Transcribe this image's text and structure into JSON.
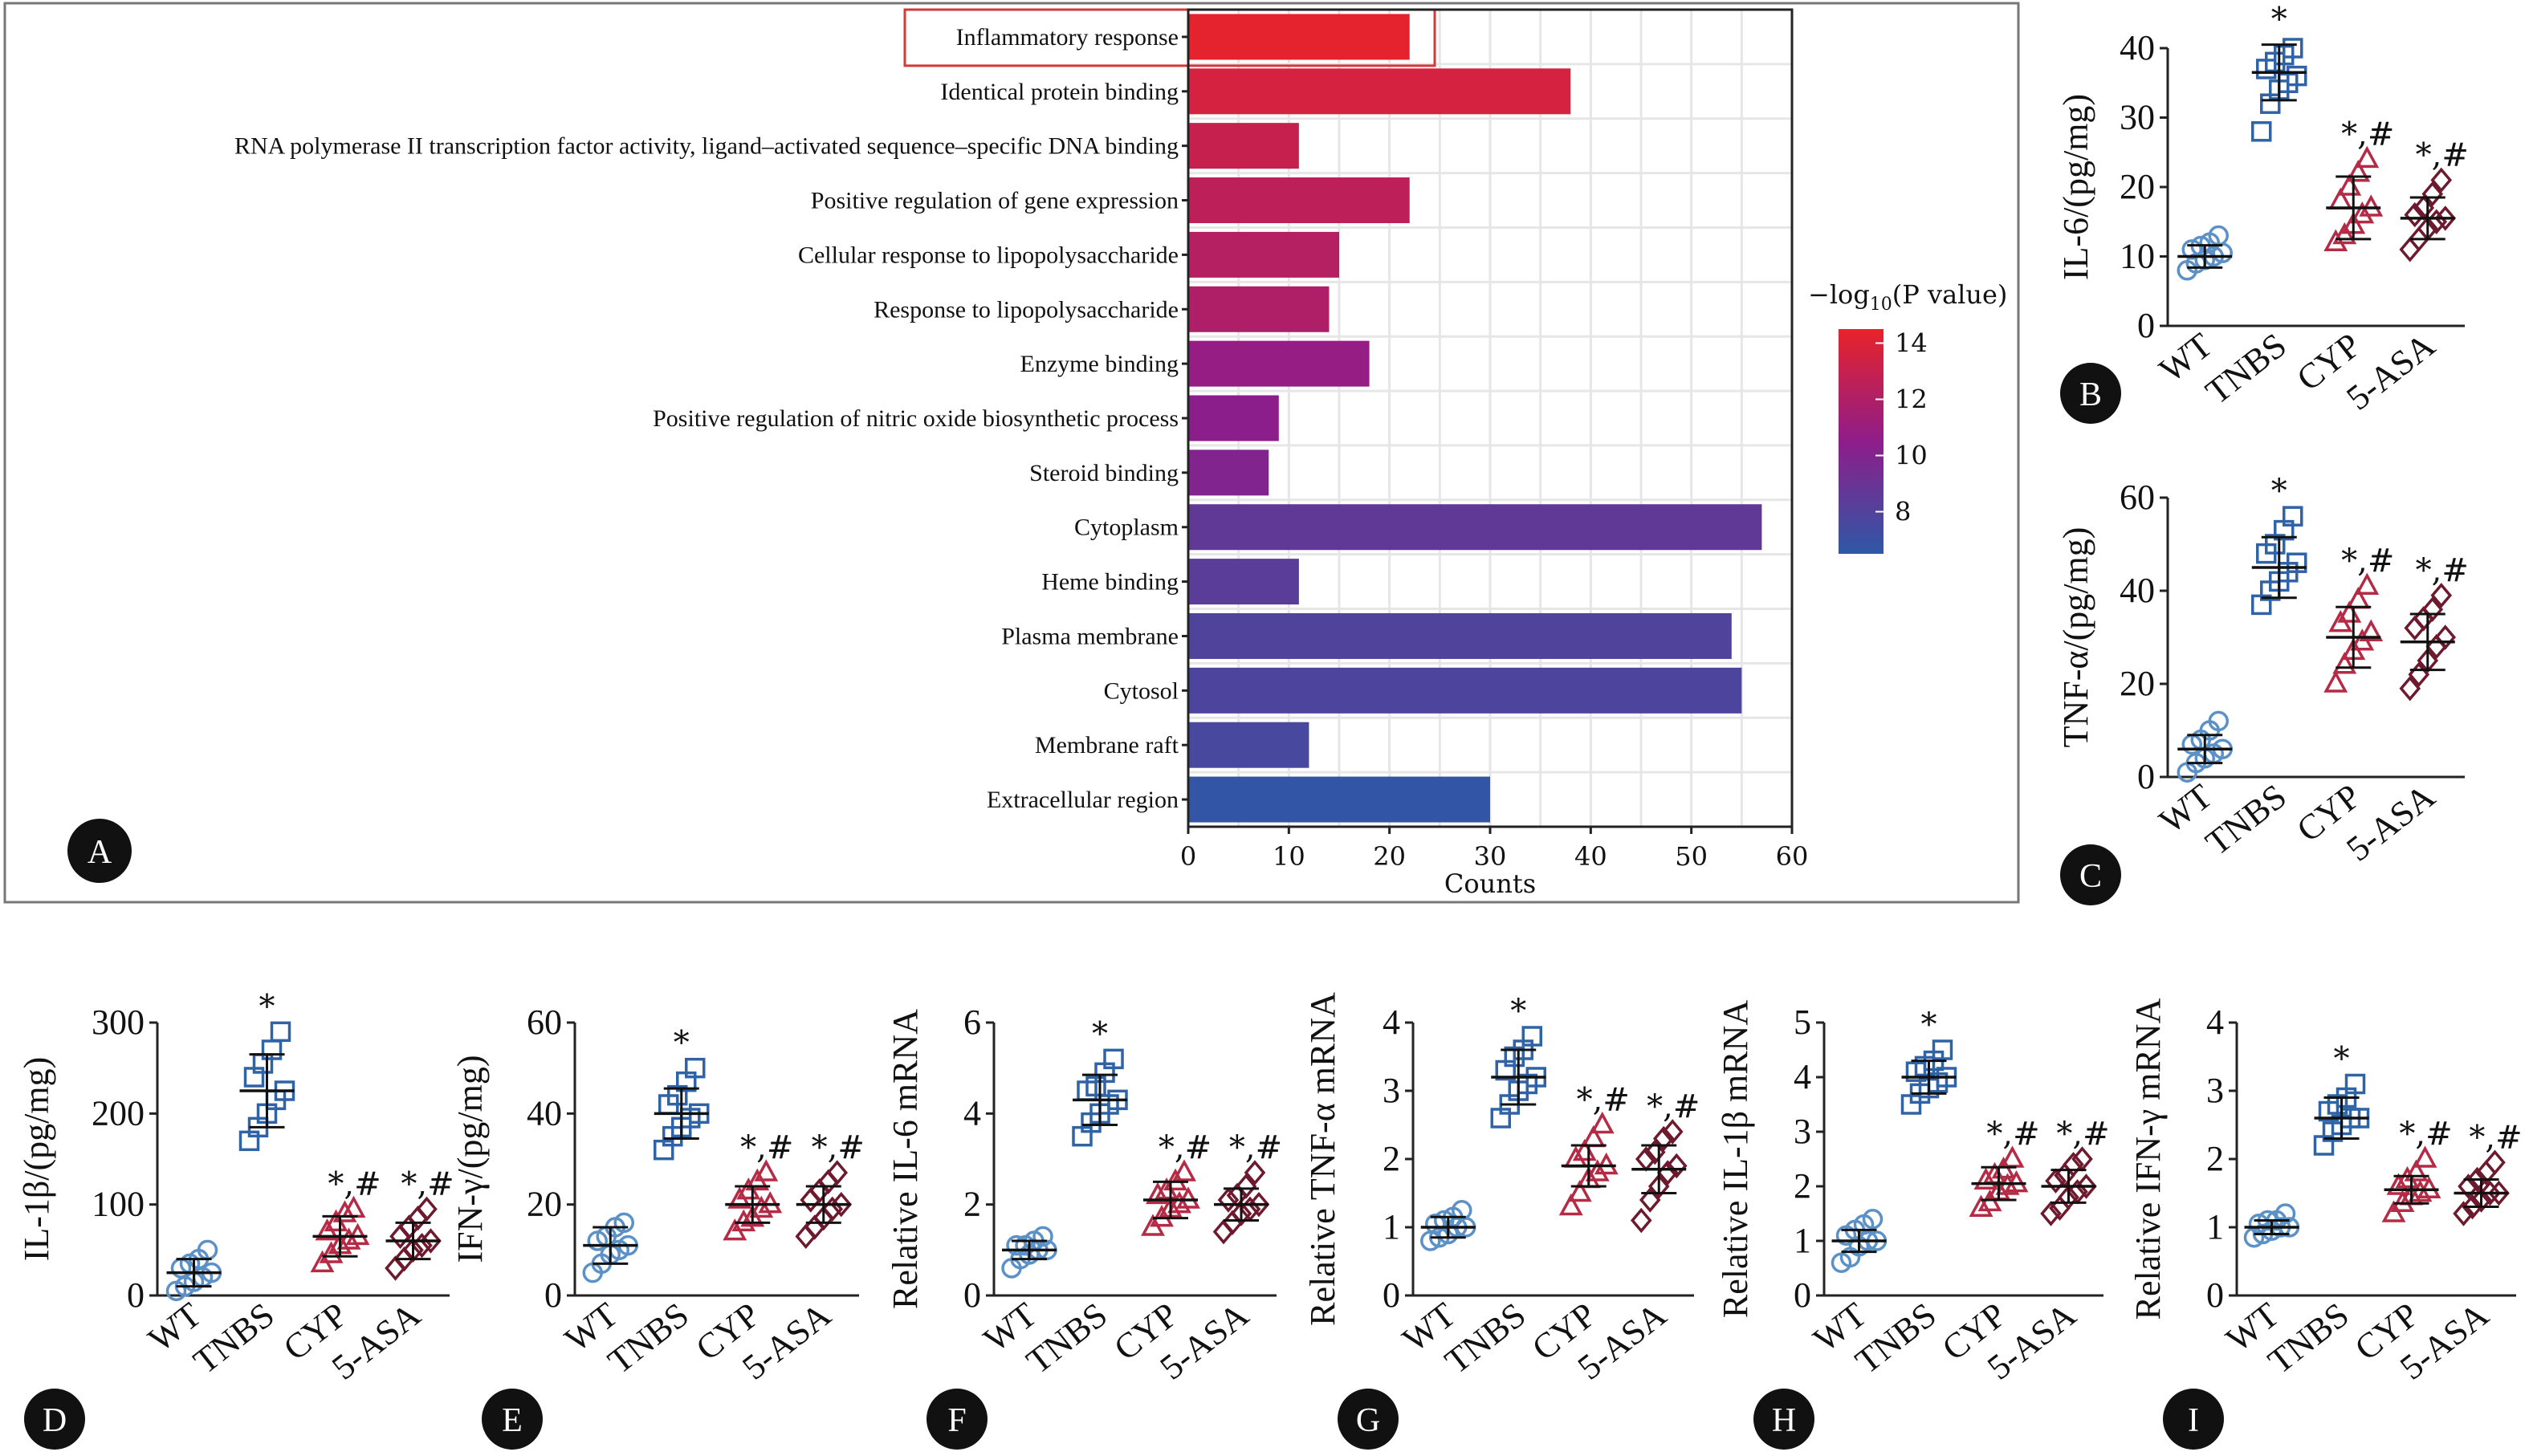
{
  "chart_data": [
    {
      "panel": "A",
      "type": "bar",
      "orientation": "horizontal",
      "categories": [
        "Inflammatory response",
        "Identical protein binding",
        "RNA polymerase II transcription factor activity, ligand–activated sequence–specific DNA binding",
        "Positive regulation of gene expression",
        "Cellular response to lipopolysaccharide",
        "Response to lipopolysaccharide",
        "Enzyme binding",
        "Positive regulation of nitric oxide biosynthetic process",
        "Steroid binding",
        "Cytoplasm",
        "Heme binding",
        "Plasma membrane",
        "Cytosol",
        "Membrane raft",
        "Extracellular region"
      ],
      "values": [
        22,
        38,
        11,
        22,
        15,
        14,
        18,
        9,
        8,
        57,
        11,
        54,
        55,
        12,
        30
      ],
      "neg_log10_p": [
        14.3,
        13.6,
        13.0,
        12.6,
        12.2,
        11.9,
        10.8,
        10.4,
        10.0,
        8.6,
        8.3,
        7.9,
        7.8,
        7.6,
        6.7
      ],
      "xlabel": "Counts",
      "xlim": [
        0,
        60
      ],
      "xticks": [
        "0",
        "10",
        "20",
        "30",
        "40",
        "50",
        "60"
      ],
      "colorbar": {
        "title": "−log",
        "sub": "10",
        "rest": "(P value)",
        "range": [
          6.5,
          14.5
        ],
        "ticks": [
          "14",
          "12",
          "10",
          "8"
        ],
        "tick_values": [
          14,
          12,
          10,
          8
        ]
      },
      "highlight": "Inflammatory response",
      "colors": {
        "low": "#2e58a6",
        "mid": "#8e1d8a",
        "high": "#e8232a"
      },
      "grid": true
    },
    {
      "panel": "B",
      "type": "scatter",
      "ylabel": "IL-6/(pg/mg)",
      "ylim": [
        0,
        40
      ],
      "yticks": [
        "0",
        "10",
        "20",
        "30",
        "40"
      ],
      "categories": [
        "WT",
        "TNBS",
        "CYP",
        "5-ASA"
      ],
      "mean": [
        10,
        36.5,
        17,
        15.5
      ],
      "sd": [
        1.6,
        4,
        4.5,
        3
      ],
      "points": [
        [
          8,
          9,
          9.5,
          10,
          10.5,
          11,
          11.5,
          12,
          13
        ],
        [
          28,
          32,
          34,
          35,
          36,
          37,
          38,
          39,
          40
        ],
        [
          12,
          13,
          14.5,
          16,
          17,
          18,
          20,
          22,
          24
        ],
        [
          11,
          12.5,
          14,
          15,
          15.5,
          16,
          17,
          19,
          21
        ]
      ],
      "annotations": [
        "",
        "*",
        "*,#",
        "*,#"
      ]
    },
    {
      "panel": "C",
      "type": "scatter",
      "ylabel": "TNF-α/(pg/mg)",
      "ylim": [
        0,
        60
      ],
      "yticks": [
        "0",
        "20",
        "40",
        "60"
      ],
      "categories": [
        "WT",
        "TNBS",
        "CYP",
        "5-ASA"
      ],
      "mean": [
        6,
        45,
        30,
        29
      ],
      "sd": [
        3,
        6.5,
        6.5,
        6
      ],
      "points": [
        [
          1,
          3,
          4,
          5,
          6,
          7,
          8,
          10,
          12
        ],
        [
          37,
          40,
          42,
          44,
          46,
          48,
          50,
          53,
          56
        ],
        [
          20,
          24,
          27,
          29,
          31,
          33,
          35,
          38,
          41
        ],
        [
          19,
          22,
          25,
          28,
          30,
          32,
          34,
          36,
          39
        ]
      ],
      "annotations": [
        "",
        "*",
        "*,#",
        "*,#"
      ]
    },
    {
      "panel": "D",
      "type": "scatter",
      "ylabel": "IL-1β/(pg/mg)",
      "ylim": [
        0,
        300
      ],
      "yticks": [
        "0",
        "100",
        "200",
        "300"
      ],
      "categories": [
        "WT",
        "TNBS",
        "CYP",
        "5-ASA"
      ],
      "mean": [
        25,
        225,
        65,
        60
      ],
      "sd": [
        15,
        40,
        22,
        20
      ],
      "points": [
        [
          5,
          10,
          15,
          20,
          25,
          30,
          35,
          40,
          50
        ],
        [
          170,
          185,
          200,
          215,
          225,
          240,
          255,
          270,
          290
        ],
        [
          35,
          45,
          55,
          60,
          65,
          70,
          80,
          90,
          95
        ],
        [
          30,
          40,
          50,
          55,
          60,
          65,
          75,
          85,
          95
        ]
      ],
      "annotations": [
        "",
        "*",
        "*,#",
        "*,#"
      ]
    },
    {
      "panel": "E",
      "type": "scatter",
      "ylabel": "IFN-γ/(pg/mg)",
      "ylim": [
        0,
        60
      ],
      "yticks": [
        "0",
        "20",
        "40",
        "60"
      ],
      "categories": [
        "WT",
        "TNBS",
        "CYP",
        "5-ASA"
      ],
      "mean": [
        11,
        40,
        20,
        20
      ],
      "sd": [
        4,
        5.5,
        4,
        4
      ],
      "points": [
        [
          5,
          7,
          9,
          10,
          11,
          12,
          13,
          15,
          16
        ],
        [
          32,
          35,
          37,
          39,
          40,
          42,
          44,
          47,
          50
        ],
        [
          14,
          16,
          17,
          19,
          20,
          21,
          23,
          25,
          27
        ],
        [
          13,
          15,
          17,
          19,
          20,
          21,
          23,
          25,
          27
        ]
      ],
      "annotations": [
        "",
        "*",
        "*,#",
        "*,#"
      ]
    },
    {
      "panel": "F",
      "type": "scatter",
      "ylabel": "Relative IL-6 mRNA",
      "ylim": [
        0,
        6
      ],
      "yticks": [
        "0",
        "2",
        "4",
        "6"
      ],
      "categories": [
        "WT",
        "TNBS",
        "CYP",
        "5-ASA"
      ],
      "mean": [
        1,
        4.3,
        2.1,
        2
      ],
      "sd": [
        0.2,
        0.55,
        0.4,
        0.35
      ],
      "points": [
        [
          0.6,
          0.8,
          0.9,
          1,
          1,
          1.1,
          1.1,
          1.2,
          1.3
        ],
        [
          3.5,
          3.8,
          4,
          4.2,
          4.3,
          4.5,
          4.6,
          4.9,
          5.2
        ],
        [
          1.5,
          1.7,
          1.9,
          2,
          2.1,
          2.2,
          2.3,
          2.5,
          2.7
        ],
        [
          1.4,
          1.6,
          1.8,
          1.9,
          2,
          2.1,
          2.2,
          2.4,
          2.7
        ]
      ],
      "annotations": [
        "",
        "*",
        "*,#",
        "*,#"
      ]
    },
    {
      "panel": "G",
      "type": "scatter",
      "ylabel": "Relative TNF-α mRNA",
      "ylim": [
        0,
        4
      ],
      "yticks": [
        "0",
        "1",
        "2",
        "3",
        "4"
      ],
      "categories": [
        "WT",
        "TNBS",
        "CYP",
        "5-ASA"
      ],
      "mean": [
        1,
        3.2,
        1.9,
        1.85
      ],
      "sd": [
        0.15,
        0.4,
        0.3,
        0.35
      ],
      "points": [
        [
          0.8,
          0.85,
          0.9,
          1,
          1,
          1.05,
          1.1,
          1.15,
          1.25
        ],
        [
          2.6,
          2.8,
          3,
          3.1,
          3.2,
          3.3,
          3.5,
          3.6,
          3.8
        ],
        [
          1.3,
          1.5,
          1.7,
          1.8,
          1.9,
          2,
          2.1,
          2.3,
          2.5
        ],
        [
          1.1,
          1.4,
          1.6,
          1.8,
          1.9,
          2,
          2.1,
          2.3,
          2.4
        ]
      ],
      "annotations": [
        "",
        "*",
        "*,#",
        "*,#"
      ]
    },
    {
      "panel": "H",
      "type": "scatter",
      "ylabel": "Relative IL-1β mRNA",
      "ylim": [
        0,
        5
      ],
      "yticks": [
        "0",
        "1",
        "2",
        "3",
        "4",
        "5"
      ],
      "categories": [
        "WT",
        "TNBS",
        "CYP",
        "5-ASA"
      ],
      "mean": [
        1,
        4,
        2.05,
        2
      ],
      "sd": [
        0.2,
        0.3,
        0.3,
        0.3
      ],
      "points": [
        [
          0.6,
          0.7,
          0.9,
          1,
          1,
          1.1,
          1.2,
          1.3,
          1.4
        ],
        [
          3.5,
          3.7,
          3.8,
          3.9,
          4,
          4.1,
          4.2,
          4.3,
          4.5
        ],
        [
          1.6,
          1.7,
          1.9,
          2,
          2.05,
          2.1,
          2.2,
          2.3,
          2.5
        ],
        [
          1.5,
          1.6,
          1.8,
          1.9,
          2,
          2.1,
          2.2,
          2.4,
          2.5
        ]
      ],
      "annotations": [
        "",
        "*",
        "*,#",
        "*,#"
      ]
    },
    {
      "panel": "I",
      "type": "scatter",
      "ylabel": "Relative IFN-γ mRNA",
      "ylim": [
        0,
        4
      ],
      "yticks": [
        "0",
        "1",
        "2",
        "3",
        "4"
      ],
      "categories": [
        "WT",
        "TNBS",
        "CYP",
        "5-ASA"
      ],
      "mean": [
        1,
        2.6,
        1.55,
        1.5
      ],
      "sd": [
        0.1,
        0.3,
        0.2,
        0.2
      ],
      "points": [
        [
          0.85,
          0.9,
          0.95,
          1,
          1,
          1.05,
          1.1,
          1.1,
          1.2
        ],
        [
          2.2,
          2.4,
          2.5,
          2.6,
          2.6,
          2.7,
          2.8,
          2.9,
          3.1
        ],
        [
          1.2,
          1.35,
          1.45,
          1.5,
          1.55,
          1.6,
          1.7,
          1.8,
          2
        ],
        [
          1.2,
          1.3,
          1.4,
          1.5,
          1.5,
          1.6,
          1.7,
          1.8,
          1.95
        ]
      ],
      "annotations": [
        "",
        "*",
        "*,#",
        "*,#"
      ]
    }
  ],
  "group_colors": {
    "WT": "#5b91c7",
    "TNBS": "#2f63a6",
    "CYP": "#b52a44",
    "5-ASA": "#6e1a2e"
  },
  "group_markers": {
    "WT": "circle",
    "TNBS": "square",
    "CYP": "triangle",
    "5-ASA": "diamond"
  }
}
